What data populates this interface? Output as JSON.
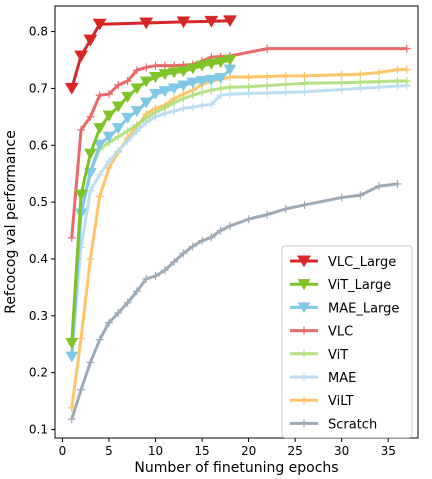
{
  "chart_data": {
    "type": "line",
    "title": "",
    "xlabel": "Number of finetuning epochs",
    "ylabel": "Refcocog val performance",
    "xlim": [
      -0.8,
      38.2
    ],
    "ylim": [
      0.085,
      0.845
    ],
    "xticks": [
      0,
      5,
      10,
      15,
      20,
      25,
      30,
      35
    ],
    "yticks": [
      0.1,
      0.2,
      0.3,
      0.4,
      0.5,
      0.6,
      0.7,
      0.8
    ],
    "grid": false,
    "legend_position": "lower-right",
    "series": [
      {
        "name": "VLC_Large",
        "color": "#d62728",
        "opacity": 1.0,
        "marker": "triangle-down",
        "marker_size": 6.5,
        "width": 3.0,
        "x": [
          1,
          2,
          3,
          4,
          9,
          13,
          16,
          18
        ],
        "y": [
          0.7,
          0.757,
          0.785,
          0.813,
          0.815,
          0.817,
          0.818,
          0.819
        ]
      },
      {
        "name": "ViT_Large",
        "color": "#7ec426",
        "opacity": 1.0,
        "marker": "triangle-down",
        "marker_size": 6,
        "width": 3.0,
        "x": [
          1,
          2,
          3,
          4,
          5,
          6,
          7,
          8,
          9,
          10,
          11,
          12,
          13,
          14,
          15,
          16,
          17,
          18
        ],
        "y": [
          0.252,
          0.513,
          0.585,
          0.63,
          0.652,
          0.668,
          0.685,
          0.7,
          0.712,
          0.72,
          0.725,
          0.728,
          0.73,
          0.735,
          0.74,
          0.743,
          0.746,
          0.75
        ]
      },
      {
        "name": "MAE_Large",
        "color": "#7fc8e6",
        "opacity": 1.0,
        "marker": "triangle-down",
        "marker_size": 6,
        "width": 3.0,
        "x": [
          1,
          2,
          3,
          4,
          5,
          6,
          7,
          8,
          9,
          10,
          11,
          12,
          13,
          14,
          15,
          16,
          17,
          18
        ],
        "y": [
          0.228,
          0.48,
          0.551,
          0.601,
          0.615,
          0.63,
          0.648,
          0.66,
          0.675,
          0.69,
          0.695,
          0.7,
          0.705,
          0.71,
          0.713,
          0.715,
          0.718,
          0.733
        ]
      },
      {
        "name": "VLC",
        "color": "#e8595c",
        "opacity": 0.9,
        "marker": "plus",
        "marker_size": 4,
        "width": 3.0,
        "x": [
          1,
          2,
          3,
          4,
          5,
          6,
          7,
          8,
          9,
          10,
          11,
          12,
          13,
          14,
          15,
          16,
          17,
          18,
          22,
          37
        ],
        "y": [
          0.437,
          0.627,
          0.65,
          0.688,
          0.69,
          0.706,
          0.713,
          0.732,
          0.737,
          0.74,
          0.74,
          0.74,
          0.741,
          0.742,
          0.748,
          0.755,
          0.756,
          0.757,
          0.77,
          0.77
        ]
      },
      {
        "name": "ViT",
        "color": "#a8dc6e",
        "opacity": 0.85,
        "marker": "plus",
        "marker_size": 4,
        "width": 3.0,
        "x": [
          1,
          2,
          3,
          4,
          5,
          6,
          7,
          8,
          9,
          10,
          11,
          12,
          13,
          14,
          15,
          16,
          17,
          18,
          20,
          22,
          24,
          26,
          30,
          32,
          34,
          36,
          37
        ],
        "y": [
          0.25,
          0.48,
          0.553,
          0.593,
          0.605,
          0.615,
          0.625,
          0.636,
          0.648,
          0.658,
          0.666,
          0.675,
          0.682,
          0.688,
          0.693,
          0.697,
          0.7,
          0.702,
          0.703,
          0.705,
          0.707,
          0.709,
          0.71,
          0.711,
          0.712,
          0.713,
          0.713
        ]
      },
      {
        "name": "MAE",
        "color": "#b5dbf2",
        "opacity": 0.9,
        "marker": "plus",
        "marker_size": 4,
        "width": 3.0,
        "x": [
          1,
          2,
          3,
          4,
          5,
          6,
          7,
          8,
          9,
          10,
          11,
          12,
          13,
          14,
          15,
          16,
          17,
          18,
          20,
          22,
          24,
          26,
          30,
          32,
          34,
          36,
          37
        ],
        "y": [
          0.232,
          0.42,
          0.52,
          0.548,
          0.572,
          0.59,
          0.608,
          0.625,
          0.64,
          0.65,
          0.656,
          0.66,
          0.665,
          0.667,
          0.67,
          0.672,
          0.688,
          0.69,
          0.691,
          0.692,
          0.693,
          0.694,
          0.698,
          0.7,
          0.702,
          0.704,
          0.705
        ]
      },
      {
        "name": "ViLT",
        "color": "#ffbf5a",
        "opacity": 0.9,
        "marker": "plus",
        "marker_size": 4,
        "width": 3.0,
        "x": [
          1,
          2,
          3,
          4,
          5,
          6,
          7,
          8,
          9,
          10,
          11,
          12,
          13,
          14,
          15,
          16,
          17,
          18,
          20,
          22,
          24,
          26,
          30,
          32,
          34,
          36,
          37
        ],
        "y": [
          0.138,
          0.26,
          0.4,
          0.51,
          0.56,
          0.588,
          0.613,
          0.633,
          0.655,
          0.665,
          0.67,
          0.682,
          0.69,
          0.697,
          0.707,
          0.713,
          0.716,
          0.72,
          0.72,
          0.721,
          0.722,
          0.722,
          0.724,
          0.725,
          0.728,
          0.733,
          0.733
        ]
      },
      {
        "name": "Scratch",
        "color": "#9aa6b4",
        "opacity": 0.95,
        "marker": "plus",
        "marker_size": 4,
        "width": 3.0,
        "x": [
          1,
          2,
          3,
          4,
          5,
          6,
          7,
          8,
          9,
          10,
          11,
          12,
          13,
          14,
          15,
          16,
          17,
          18,
          20,
          22,
          24,
          26,
          30,
          32,
          34,
          36
        ],
        "y": [
          0.118,
          0.17,
          0.218,
          0.258,
          0.288,
          0.305,
          0.323,
          0.343,
          0.365,
          0.37,
          0.38,
          0.395,
          0.41,
          0.422,
          0.432,
          0.438,
          0.45,
          0.458,
          0.47,
          0.478,
          0.488,
          0.495,
          0.508,
          0.512,
          0.528,
          0.532
        ]
      }
    ]
  }
}
